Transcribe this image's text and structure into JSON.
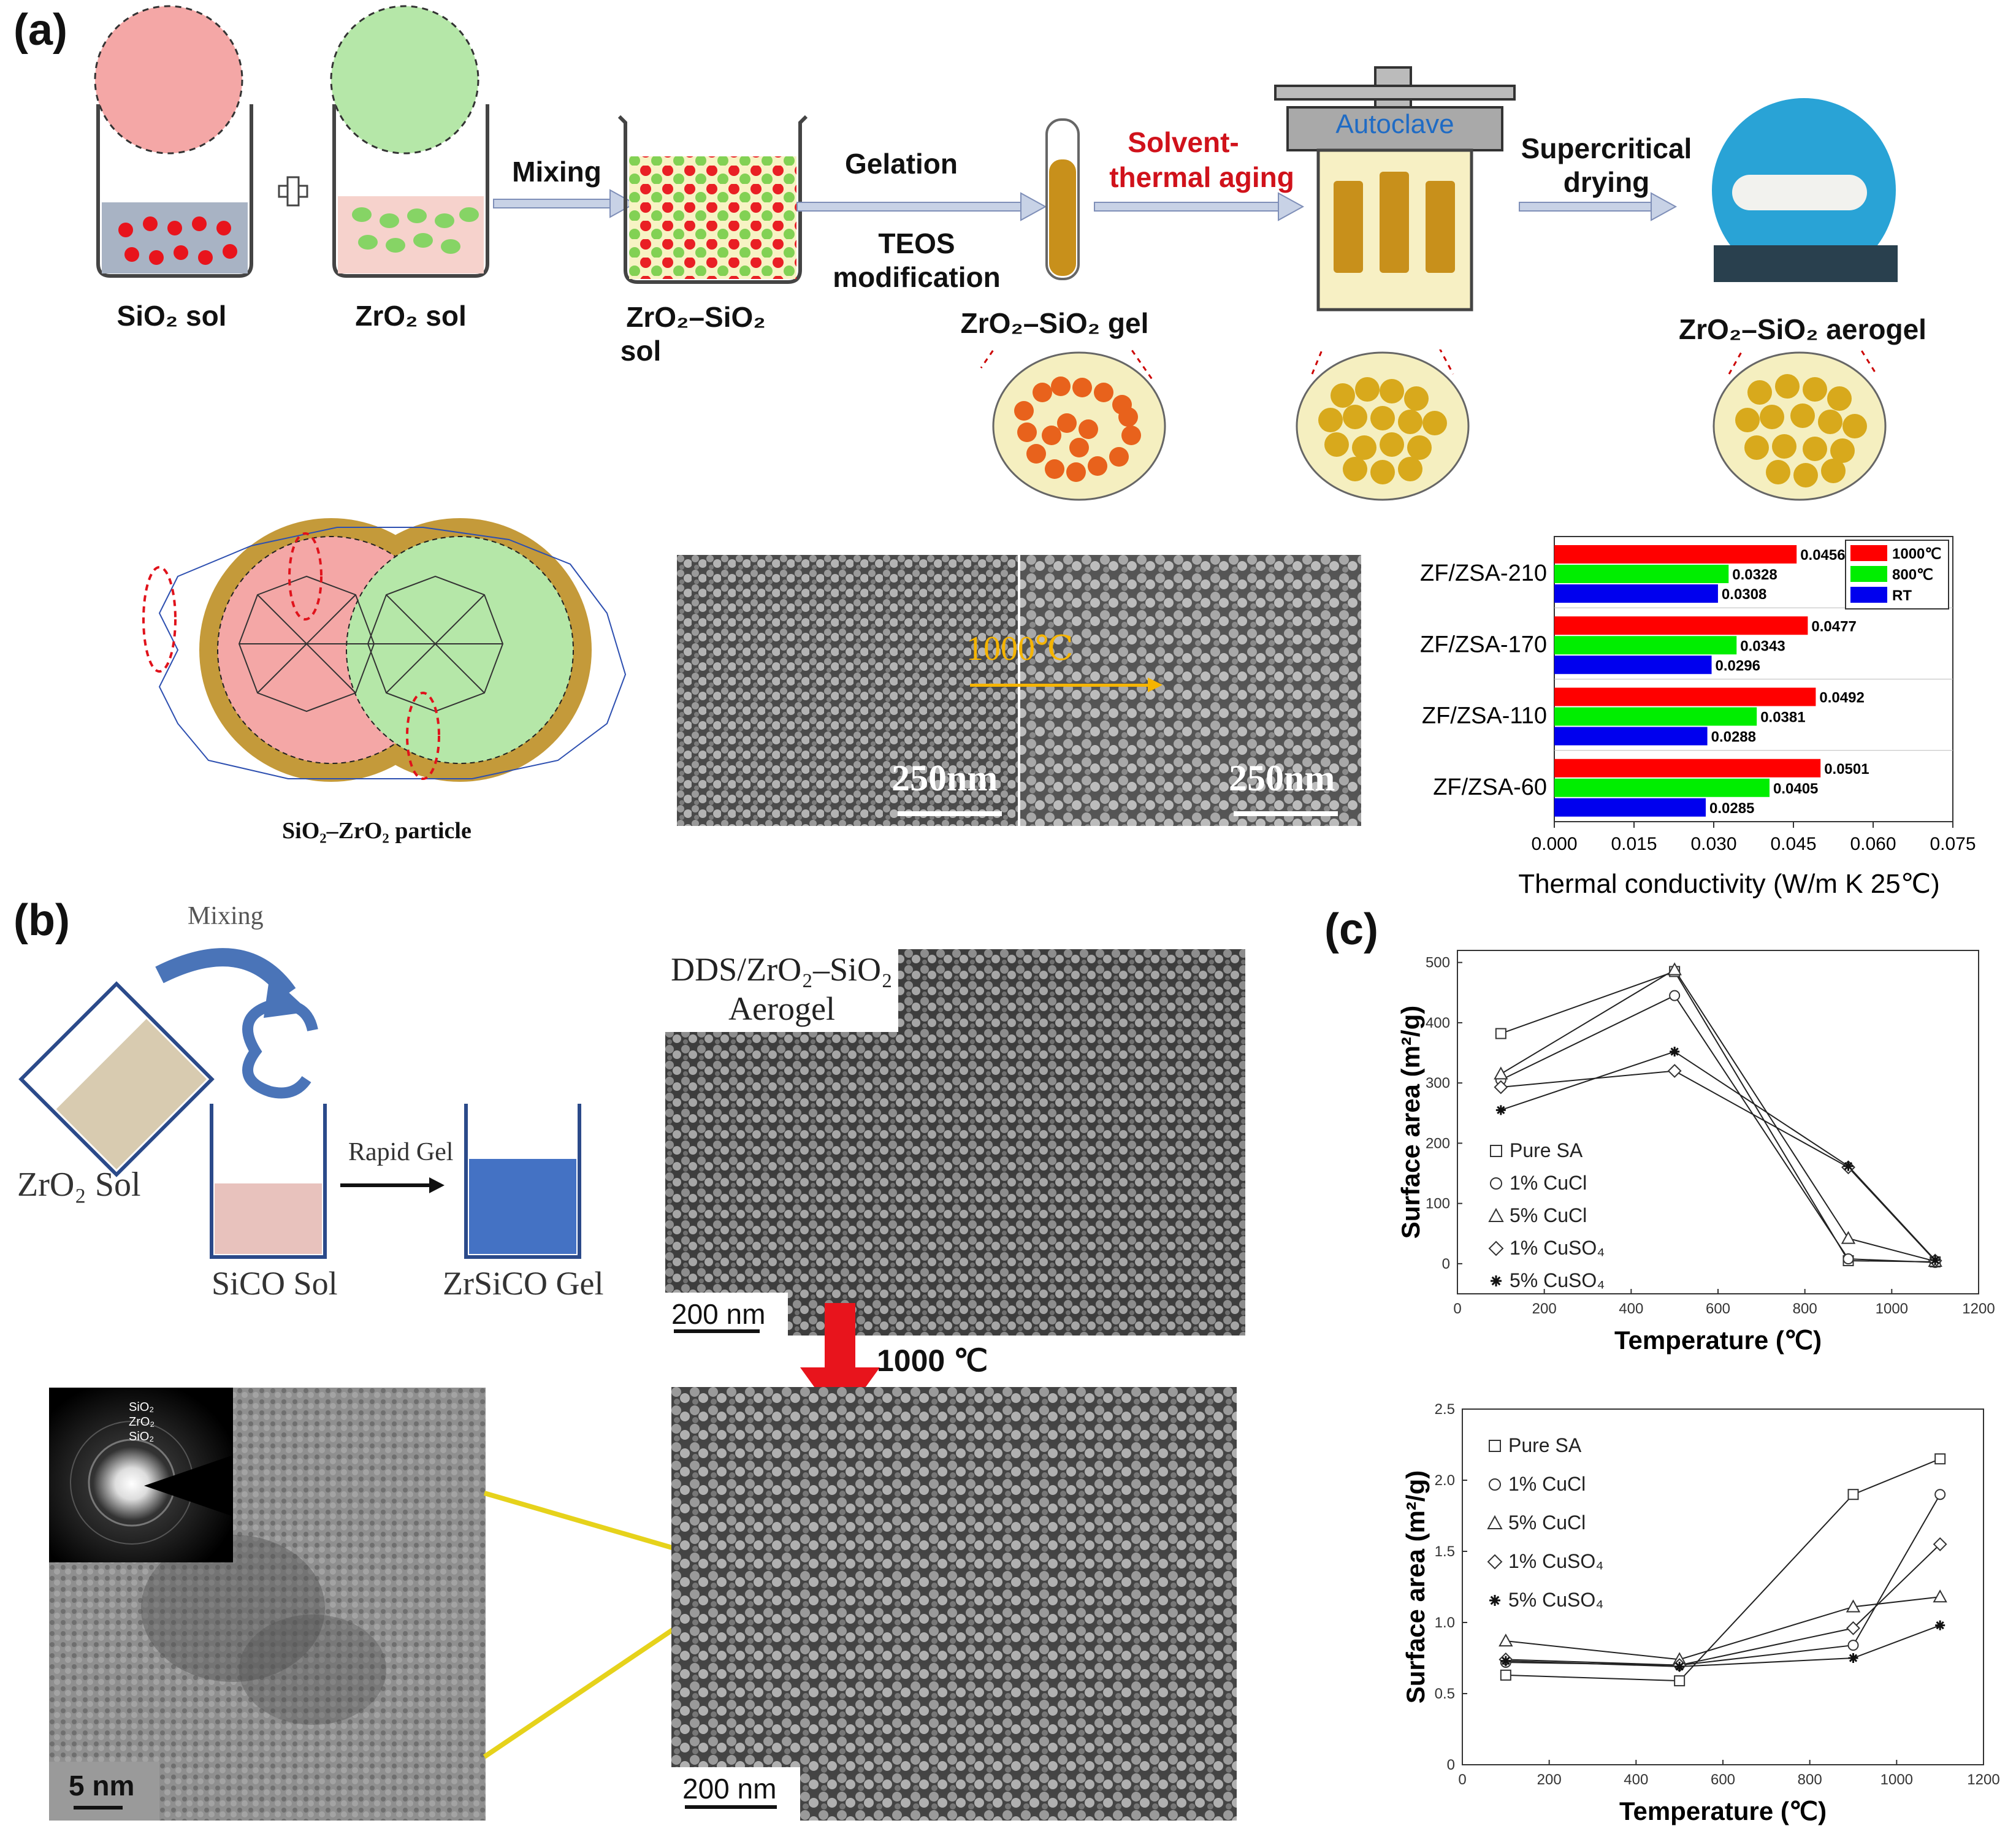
{
  "panel_a": {
    "label": "(a)",
    "sio2_sol": "SiO₂ sol",
    "zro2_sol": "ZrO₂ sol",
    "mixing": "Mixing",
    "zro2_sio2_sol_line1": "ZrO₂–SiO₂",
    "zro2_sio2_sol_line2": "sol",
    "gelation": "Gelation",
    "teos_line1": "TEOS",
    "teos_line2": "modification",
    "gel": "ZrO₂–SiO₂ gel",
    "solvent_line1": "Solvent-",
    "solvent_line2": "thermal aging",
    "autoclave": "Autoclave",
    "drying_line1": "Supercritical",
    "drying_line2": "drying",
    "aerogel": "ZrO₂–SiO₂ aerogel",
    "particle_caption": "SiO₂–ZrO₂ particle",
    "sem_arrow": "1000℃",
    "scale_left": "250nm",
    "scale_right": "250nm"
  },
  "chart_a": {
    "xlabel": "Thermal conductivity (W/m K 25℃)",
    "colors": {
      "1000℃": "#ff0000",
      "800℃": "#00ee00",
      "RT": "#0000ee"
    }
  },
  "panel_b": {
    "label": "(b)",
    "mixing": "Mixing",
    "zro2_sol": "ZrO₂ Sol",
    "sico_sol": "SiCO Sol",
    "rapid_gel": "Rapid Gel",
    "zrsico_gel": "ZrSiCO Gel",
    "aerogel_line1": "DDS/ZrO₂–SiO₂",
    "aerogel_line2": "Aerogel",
    "scale_top": "200 nm",
    "temp": "1000 ℃",
    "scale_tem": "5 nm",
    "scale_bottom": "200 nm",
    "saed": [
      "SiO₂",
      "ZrO₂",
      "SiO₂"
    ]
  },
  "panel_c": {
    "label": "(c)"
  },
  "chart_data": [
    {
      "type": "bar",
      "orientation": "horizontal",
      "categories": [
        "ZF/ZSA-210",
        "ZF/ZSA-170",
        "ZF/ZSA-110",
        "ZF/ZSA-60"
      ],
      "series": [
        {
          "name": "1000℃",
          "values": [
            0.0456,
            0.0477,
            0.0492,
            0.0501
          ],
          "labels": [
            "0.0456",
            "0.0477",
            "0.0492",
            "0.0501"
          ]
        },
        {
          "name": "800℃",
          "values": [
            0.0328,
            0.0343,
            0.0381,
            0.0405
          ],
          "labels": [
            "0.0328",
            "0.0343",
            "0.0381",
            "0.0405"
          ]
        },
        {
          "name": "RT",
          "values": [
            0.0308,
            0.0296,
            0.0288,
            0.0285
          ],
          "labels": [
            "0.0308",
            "0.0296",
            "0.0288",
            "0.0285"
          ]
        }
      ],
      "xlabel": "Thermal conductivity (W/m K 25℃)",
      "xlim": [
        0,
        0.075
      ],
      "xticks": [
        "0.000",
        "0.015",
        "0.030",
        "0.045",
        "0.060",
        "0.075"
      ],
      "legend": "top-right"
    },
    {
      "type": "line",
      "x": [
        100,
        500,
        900,
        1100
      ],
      "series": [
        {
          "name": "Pure SA",
          "marker": "square",
          "values": [
            382,
            485,
            5,
            3
          ]
        },
        {
          "name": "1% CuCl",
          "marker": "circle",
          "values": [
            305,
            445,
            8,
            2
          ]
        },
        {
          "name": "5% CuCl",
          "marker": "triangle",
          "values": [
            315,
            488,
            42,
            4
          ]
        },
        {
          "name": "1% CuSO₄",
          "marker": "diamond",
          "values": [
            293,
            320,
            160,
            5
          ]
        },
        {
          "name": "5% CuSO₄",
          "marker": "asterisk",
          "values": [
            255,
            352,
            162,
            6
          ]
        }
      ],
      "xlabel": "Temperature (℃)",
      "ylabel": "Surface area (m²/g)",
      "xlim": [
        0,
        1200
      ],
      "ylim": [
        -50,
        520
      ],
      "xticks": [
        "0",
        "200",
        "400",
        "600",
        "800",
        "1000",
        "1200"
      ],
      "yticks": [
        "0",
        "100",
        "200",
        "300",
        "400",
        "500"
      ],
      "legend": "left"
    },
    {
      "type": "line",
      "x": [
        100,
        500,
        900,
        1100
      ],
      "series": [
        {
          "name": "Pure SA",
          "marker": "square",
          "values": [
            0.63,
            0.59,
            1.9,
            2.15
          ]
        },
        {
          "name": "1% CuCl",
          "marker": "circle",
          "values": [
            0.72,
            0.7,
            0.84,
            1.9
          ]
        },
        {
          "name": "5% CuCl",
          "marker": "triangle",
          "values": [
            0.87,
            0.74,
            1.11,
            1.18
          ]
        },
        {
          "name": "1% CuSO₄",
          "marker": "diamond",
          "values": [
            0.74,
            0.7,
            0.96,
            1.55
          ]
        },
        {
          "name": "5% CuSO₄",
          "marker": "asterisk",
          "values": [
            0.73,
            0.69,
            0.75,
            0.98
          ]
        }
      ],
      "xlabel": "Temperature (℃)",
      "ylabel": "Surface area (m²/g)",
      "xlim": [
        0,
        1200
      ],
      "ylim": [
        0,
        2.5
      ],
      "xticks": [
        "0",
        "200",
        "400",
        "600",
        "800",
        "1000",
        "1200"
      ],
      "yticks": [
        "0",
        "0.5",
        "1.0",
        "1.5",
        "2.0",
        "2.5"
      ],
      "legend": "top-left"
    }
  ]
}
